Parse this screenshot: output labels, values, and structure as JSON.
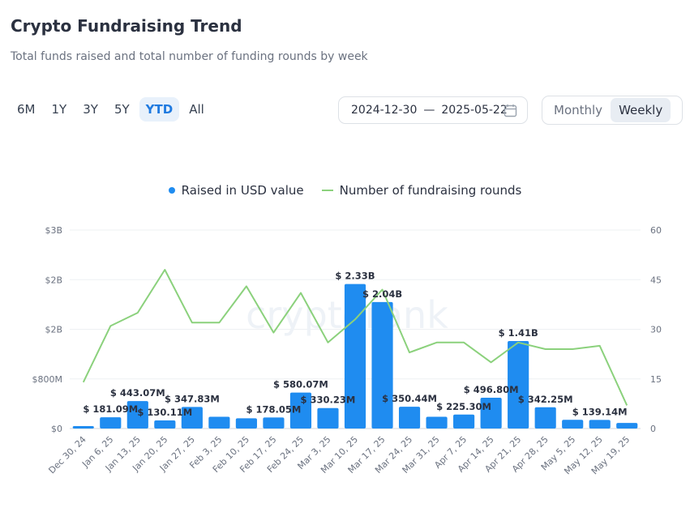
{
  "header": {
    "title": "Crypto Fundraising Trend",
    "subtitle": "Total funds raised and total number of funding rounds by week"
  },
  "ranges": [
    "6M",
    "1Y",
    "3Y",
    "5Y",
    "YTD",
    "All"
  ],
  "active_range": "YTD",
  "date_range": {
    "start": "2024-12-30",
    "separator": "—",
    "end": "2025-05-22",
    "icon": "calendar-icon"
  },
  "granularity": {
    "options": [
      "Monthly",
      "Weekly"
    ],
    "active": "Weekly"
  },
  "watermark": "cryptorank",
  "colors": {
    "bar": "#1f8cf0",
    "line": "#8bd17c",
    "accent": "#1f7ae0"
  },
  "chart_data": {
    "type": "bar",
    "legend_position": "top-center",
    "grid": true,
    "categories": [
      "Dec 30, 24",
      "Jan 6, 25",
      "Jan 13, 25",
      "Jan 20, 25",
      "Jan 27, 25",
      "Feb 3, 25",
      "Feb 10, 25",
      "Feb 17, 25",
      "Feb 24, 25",
      "Mar 3, 25",
      "Mar 10, 25",
      "Mar 17, 25",
      "Mar 24, 25",
      "Mar 31, 25",
      "Apr 7, 25",
      "Apr 14, 25",
      "Apr 21, 25",
      "Apr 28, 25",
      "May 5, 25",
      "May 12, 25",
      "May 19, 25"
    ],
    "series": [
      {
        "name": "Raised in USD value",
        "type": "bar",
        "axis": "left",
        "values": [
          40000000,
          181090000,
          443070000,
          130110000,
          347830000,
          190000000,
          165000000,
          178050000,
          580070000,
          330230000,
          2330000000,
          2040000000,
          350440000,
          190000000,
          225300000,
          496800000,
          1410000000,
          342250000,
          140000000,
          139140000,
          90000000
        ],
        "labels": [
          "",
          "$ 181.09M",
          "$ 443.07M",
          "$ 130.11M",
          "$ 347.83M",
          "",
          "",
          "$ 178.05M",
          "$ 580.07M",
          "$ 330.23M",
          "$ 2.33B",
          "$ 2.04B",
          "$ 350.44M",
          "",
          "$ 225.30M",
          "$ 496.80M",
          "$ 1.41B",
          "$ 342.25M",
          "",
          "$ 139.14M",
          ""
        ]
      },
      {
        "name": "Number of fundraising rounds",
        "type": "line",
        "axis": "right",
        "values": [
          14,
          31,
          35,
          48,
          32,
          32,
          43,
          29,
          41,
          26,
          33,
          42,
          23,
          26,
          26,
          20,
          26,
          24,
          24,
          25,
          7
        ]
      }
    ],
    "y_left": {
      "ticks": [
        "$0",
        "$800M",
        "$2B",
        "$2B",
        "$3B"
      ],
      "lim": [
        0,
        3200000000
      ]
    },
    "y_right": {
      "ticks": [
        "0",
        "15",
        "30",
        "45",
        "60"
      ],
      "lim": [
        0,
        60
      ]
    }
  }
}
